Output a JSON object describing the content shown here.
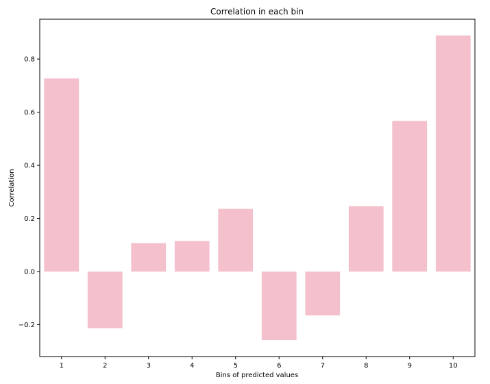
{
  "chart_data": {
    "type": "bar",
    "title": "Correlation in each bin",
    "xlabel": "Bins of predicted values",
    "ylabel": "Correlation",
    "categories": [
      "1",
      "2",
      "3",
      "4",
      "5",
      "6",
      "7",
      "8",
      "9",
      "10"
    ],
    "values": [
      0.727,
      -0.213,
      0.107,
      0.115,
      0.236,
      -0.258,
      -0.165,
      0.246,
      0.567,
      0.889
    ],
    "ylim": [
      -0.32,
      0.95
    ],
    "yticks": [
      -0.2,
      0.0,
      0.2,
      0.4,
      0.6,
      0.8
    ],
    "ytick_labels": [
      "−0.2",
      "0.0",
      "0.2",
      "0.4",
      "0.6",
      "0.8"
    ],
    "bar_color": "#f4c0cc",
    "grid": false,
    "legend": "none"
  }
}
